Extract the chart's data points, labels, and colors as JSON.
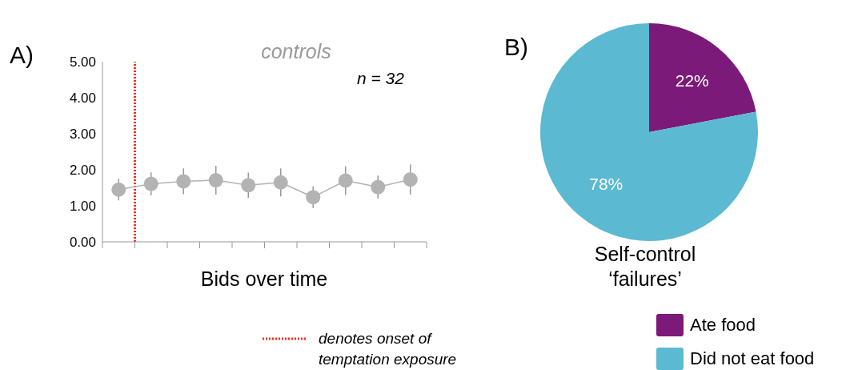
{
  "chart_data": [
    {
      "type": "line",
      "title": "controls",
      "xlabel": "Bids over time",
      "annotations": [
        "A)",
        "n = 32",
        "denotes onset of temptation exposure"
      ],
      "categories": [
        null,
        null,
        null,
        null,
        null,
        null,
        null,
        null,
        null,
        null
      ],
      "series": [
        {
          "color": "#b3b3b3",
          "values": [
            1.45,
            1.61,
            1.68,
            1.71,
            1.57,
            1.65,
            1.24,
            1.7,
            1.52,
            1.73
          ],
          "errors": [
            0.3,
            0.32,
            0.36,
            0.4,
            0.35,
            0.39,
            0.3,
            0.4,
            0.32,
            0.42
          ]
        }
      ],
      "marker": "circle",
      "line_style": "solid",
      "ylim": [
        0,
        5
      ],
      "yticks": [
        {
          "value": 0,
          "label": "0.00"
        },
        {
          "value": 1,
          "label": "1.00"
        },
        {
          "value": 2,
          "label": "2.00"
        },
        {
          "value": 3,
          "label": "3.00"
        },
        {
          "value": 4,
          "label": "4.00"
        },
        {
          "value": 5,
          "label": "5.00"
        }
      ]
    },
    {
      "type": "pie",
      "title": "Self-control ‘failures’",
      "annotations": [
        "B)"
      ],
      "categories": [
        "Ate food",
        "Did not eat food"
      ],
      "values": [
        22,
        78
      ],
      "colors": [
        "#7b1a78",
        "#5bbad2"
      ],
      "value_labels": [
        "22%",
        "78%"
      ],
      "legend": "bottom right"
    }
  ]
}
